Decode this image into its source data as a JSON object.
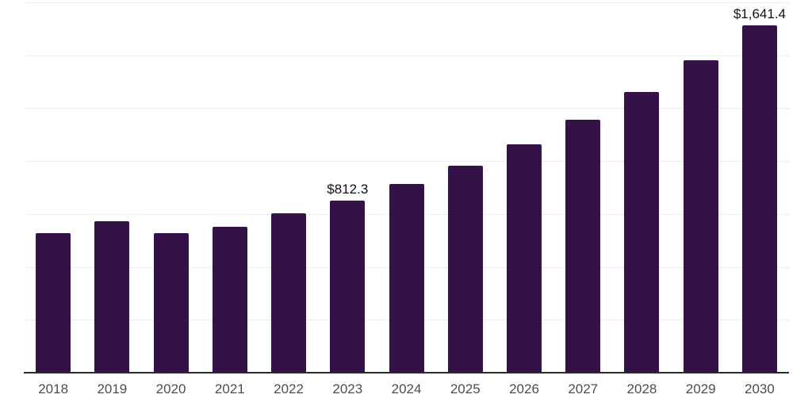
{
  "chart_data": {
    "type": "bar",
    "categories": [
      "2018",
      "2019",
      "2020",
      "2021",
      "2022",
      "2023",
      "2024",
      "2025",
      "2026",
      "2027",
      "2028",
      "2029",
      "2030"
    ],
    "values": [
      660,
      716,
      658,
      690,
      753,
      812.3,
      893,
      977,
      1080,
      1196,
      1327,
      1477,
      1641.4
    ],
    "title": "",
    "xlabel": "",
    "ylabel": "",
    "ylim": [
      0,
      1750
    ],
    "gridline_step": 250,
    "grid": "horizontal-light",
    "legend": "none",
    "annotations": [
      {
        "category": "2023",
        "label": "$812.3"
      },
      {
        "category": "2030",
        "label": "$1,641.4"
      }
    ]
  },
  "colors": {
    "bar": "#35114a",
    "gridline": "#ececec",
    "axis_line": "#2b2b2b",
    "tick_label": "#4d4d4d",
    "data_label": "#111111",
    "background": "#ffffff"
  }
}
